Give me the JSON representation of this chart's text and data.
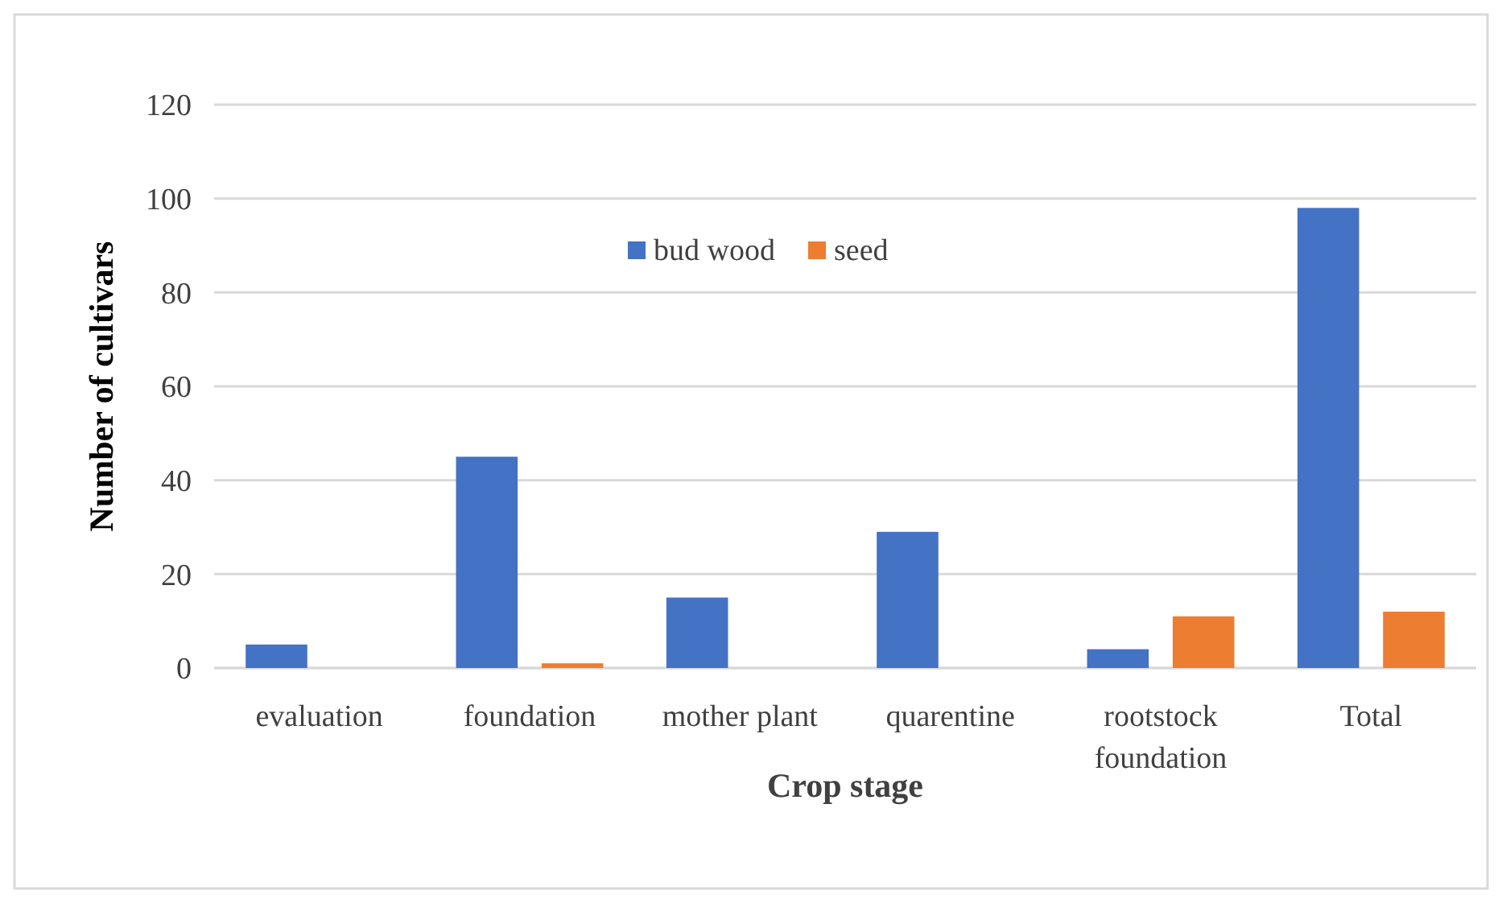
{
  "chart_data": {
    "type": "bar",
    "xlabel": "Crop stage",
    "ylabel": "Number of cultivars",
    "categories": [
      "evaluation",
      "foundation",
      "mother plant",
      "quarentine",
      "rootstock foundation",
      "Total"
    ],
    "series": [
      {
        "name": "bud wood",
        "color": "#4472c4",
        "values": [
          5,
          45,
          15,
          29,
          4,
          98
        ]
      },
      {
        "name": "seed",
        "color": "#ed7d31",
        "values": [
          0,
          1,
          0,
          0,
          11,
          12
        ]
      }
    ],
    "ylim": [
      0,
      120
    ],
    "yticks": [
      0,
      20,
      40,
      60,
      80,
      100,
      120
    ],
    "grid": "y",
    "legend": "top"
  }
}
